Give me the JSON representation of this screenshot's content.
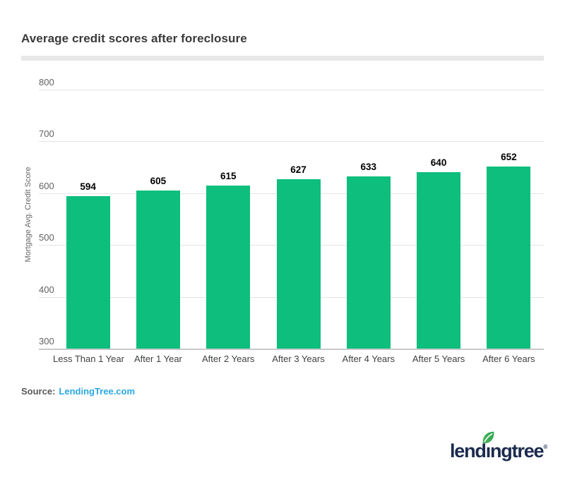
{
  "header": {
    "title": "Average credit scores after foreclosure"
  },
  "chart_data": {
    "type": "bar",
    "title": "Average credit scores after foreclosure",
    "categories": [
      "Less Than 1 Year",
      "After 1 Year",
      "After 2 Years",
      "After 3 Years",
      "After 4 Years",
      "After 5 Years",
      "After 6 Years"
    ],
    "values": [
      594,
      605,
      615,
      627,
      633,
      640,
      652
    ],
    "xlabel": "",
    "ylabel": "Mortgage Avg. Credit Score",
    "ylim": [
      300,
      800
    ],
    "yticks": [
      300,
      400,
      500,
      600,
      700,
      800
    ],
    "grid": true,
    "legend": false,
    "value_labels": true,
    "bar_color": "#0dbe7d",
    "value_label_color": "#000000",
    "tick_label_color": "#616161"
  },
  "source": {
    "label": "Source:",
    "link_text": "LendingTree.com",
    "link_color": "#29a9e1"
  },
  "footer": {
    "logo_text": "lendingtree",
    "registered_mark": "®",
    "logo_color": "#1b2b4d",
    "leaf_color": "#2da44e"
  }
}
